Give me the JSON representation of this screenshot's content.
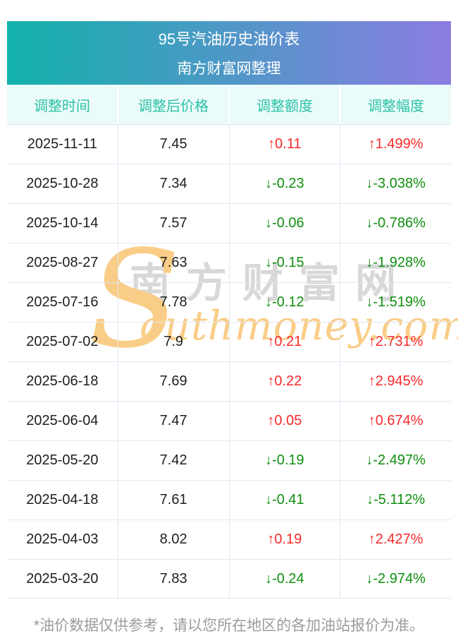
{
  "banner": {
    "title": "95号汽油历史油价表",
    "subtitle": "南方财富网整理"
  },
  "watermark": {
    "cn": "南方财富网",
    "en_initial": "S",
    "en_rest": "outhmoney.com"
  },
  "footer": {
    "note": "*油价数据仅供参考，请以您所在地区的各加油站报价为准。"
  },
  "chart_data": {
    "type": "table",
    "title": "95号汽油历史油价表",
    "columns": [
      "调整时间",
      "调整后价格",
      "调整额度",
      "调整幅度"
    ],
    "rows": [
      {
        "date": "2025-11-11",
        "price": "7.45",
        "change": "↑0.11",
        "change_pct": "↑1.499%",
        "direction": "up"
      },
      {
        "date": "2025-10-28",
        "price": "7.34",
        "change": "↓-0.23",
        "change_pct": "↓-3.038%",
        "direction": "down"
      },
      {
        "date": "2025-10-14",
        "price": "7.57",
        "change": "↓-0.06",
        "change_pct": "↓-0.786%",
        "direction": "down"
      },
      {
        "date": "2025-08-27",
        "price": "7.63",
        "change": "↓-0.15",
        "change_pct": "↓-1.928%",
        "direction": "down"
      },
      {
        "date": "2025-07-16",
        "price": "7.78",
        "change": "↓-0.12",
        "change_pct": "↓-1.519%",
        "direction": "down"
      },
      {
        "date": "2025-07-02",
        "price": "7.9",
        "change": "↑0.21",
        "change_pct": "↑2.731%",
        "direction": "up"
      },
      {
        "date": "2025-06-18",
        "price": "7.69",
        "change": "↑0.22",
        "change_pct": "↑2.945%",
        "direction": "up"
      },
      {
        "date": "2025-06-04",
        "price": "7.47",
        "change": "↑0.05",
        "change_pct": "↑0.674%",
        "direction": "up"
      },
      {
        "date": "2025-05-20",
        "price": "7.42",
        "change": "↓-0.19",
        "change_pct": "↓-2.497%",
        "direction": "down"
      },
      {
        "date": "2025-04-18",
        "price": "7.61",
        "change": "↓-0.41",
        "change_pct": "↓-5.112%",
        "direction": "down"
      },
      {
        "date": "2025-04-03",
        "price": "8.02",
        "change": "↑0.19",
        "change_pct": "↑2.427%",
        "direction": "up"
      },
      {
        "date": "2025-03-20",
        "price": "7.83",
        "change": "↓-0.24",
        "change_pct": "↓-2.974%",
        "direction": "down"
      }
    ]
  },
  "colors": {
    "banner_start": "#12b2ab",
    "banner_end": "#8c7ce2",
    "colhead_bg": "#ebfbf9",
    "colhead_text": "#2cc2a6",
    "up": "#f92a2a",
    "down": "#0f8f0f",
    "grid": "#e1e7f0",
    "text": "#1f1f1f",
    "footer": "#9b9b9b",
    "wm_gray": "#d8d8d8",
    "wm_orange": "#f9cd87"
  }
}
